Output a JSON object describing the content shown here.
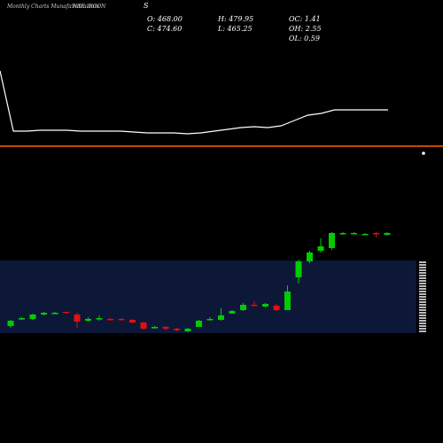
{
  "header": {
    "site": "Monthly Charts MunafaSutra.com",
    "symbol": "NSE:IRCON",
    "symbol_suffix": "S",
    "open_label": "O: 468.00",
    "close_label": "C: 474.60",
    "high_label": "H: 479.95",
    "low_label": "L: 465.25",
    "oc_label": "OC: 1.41",
    "oh_label": "OH: 2.55",
    "ol_label": "OL: 0.59"
  },
  "colors": {
    "background": "#000000",
    "up": "#00cc00",
    "down": "#e01010",
    "ma_line": "#ffffff",
    "level_line": "#ff6600",
    "grid": "#1a3070"
  },
  "chart_data": [
    {
      "type": "line",
      "name": "moving-average",
      "values": [
        120,
        52,
        52,
        53,
        53,
        53,
        52,
        52,
        52,
        52,
        51,
        50,
        50,
        50,
        49,
        50,
        52,
        54,
        56,
        57,
        56,
        58,
        64,
        70,
        72,
        76,
        76,
        76,
        76,
        76
      ],
      "horizontal_level": 0
    },
    {
      "type": "candlestick",
      "ohlc": [
        [
          62,
          68,
          60,
          69
        ],
        [
          70,
          71,
          69,
          72
        ],
        [
          70,
          75,
          69,
          76
        ],
        [
          75,
          77,
          74,
          78
        ],
        [
          77,
          77,
          76,
          78
        ],
        [
          78,
          77,
          76,
          78
        ],
        [
          75,
          67,
          60,
          77
        ],
        [
          68,
          70,
          67,
          72
        ],
        [
          70,
          71,
          68,
          74
        ],
        [
          70,
          69,
          68,
          71
        ],
        [
          70,
          69,
          68,
          71
        ],
        [
          69,
          66,
          65,
          70
        ],
        [
          66,
          59,
          58,
          67
        ],
        [
          60,
          61,
          60,
          62
        ],
        [
          61,
          59,
          57,
          62
        ],
        [
          59,
          58,
          56,
          60
        ],
        [
          56,
          59,
          55,
          60
        ],
        [
          61,
          68,
          61,
          69
        ],
        [
          69,
          70,
          68,
          72
        ],
        [
          69,
          74,
          68,
          82
        ],
        [
          76,
          79,
          76,
          80
        ],
        [
          80,
          86,
          79,
          88
        ],
        [
          86,
          85,
          84,
          90
        ],
        [
          84,
          87,
          83,
          88
        ],
        [
          85,
          80,
          79,
          87
        ],
        [
          80,
          101,
          80,
          108
        ],
        [
          117,
          135,
          110,
          137
        ],
        [
          135,
          145,
          133,
          147
        ],
        [
          147,
          152,
          145,
          161
        ],
        [
          150,
          167,
          148,
          168
        ],
        [
          167,
          167,
          165,
          168
        ],
        [
          167,
          167,
          166,
          168
        ],
        [
          166,
          166,
          165,
          167
        ],
        [
          167,
          166,
          162,
          168
        ],
        [
          165,
          167,
          164,
          168
        ]
      ]
    }
  ]
}
